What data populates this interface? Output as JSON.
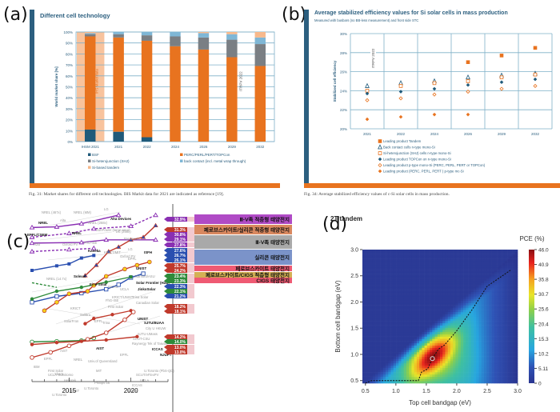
{
  "panels": {
    "a": {
      "letter": "(a)",
      "caption": "Fig. 31: Market shares for different cell technologies. IHS Markit data for 2021 are indicated as reference [19]."
    },
    "b": {
      "letter": "(b)",
      "caption": "Fig. 34: Average stabilized efficiency values of c-Si solar cells in mass production."
    },
    "c": {
      "letter": "(c)"
    },
    "d": {
      "letter": "(d)"
    }
  },
  "chart_data": [
    {
      "id": "a",
      "type": "bar",
      "stacked": true,
      "title": "Different cell technology",
      "xlabel": "",
      "ylabel": "World market share [%]",
      "ylim": [
        0,
        100
      ],
      "yticks": [
        "0%",
        "10%",
        "20%",
        "30%",
        "40%",
        "50%",
        "60%",
        "70%",
        "80%",
        "90%",
        "100%"
      ],
      "categories": [
        "IHSM 2021",
        "2021",
        "2022",
        "2024",
        "2026",
        "2029",
        "2032"
      ],
      "annotations": [
        "IHS Markit data",
        "ITRPV 2022"
      ],
      "series": [
        {
          "name": "BSF",
          "color": "#1f5a7a",
          "values": [
            11,
            9,
            4,
            0,
            0,
            0,
            0
          ]
        },
        {
          "name": "PERC/PERL/PERT/TOPCon",
          "color": "#e8731f",
          "values": [
            85,
            86,
            88,
            87,
            84,
            77,
            69
          ]
        },
        {
          "name": "Si-heterojunction (SHJ)",
          "color": "#7a7f84",
          "values": [
            2,
            3,
            5,
            9,
            11,
            16,
            20
          ]
        },
        {
          "name": "back contact (incl. metal wrap through)",
          "color": "#7fb7d6",
          "values": [
            1,
            2,
            3,
            4,
            4,
            5,
            6
          ]
        },
        {
          "name": "Si-based tandem",
          "color": "#f7b98c",
          "values": [
            1,
            0,
            0,
            0,
            1,
            2,
            5
          ]
        }
      ],
      "legend": [
        "BSF",
        "PERC/PERL/PERT/TOPCon",
        "Si-heterojunction (SHJ)",
        "back contact (incl. metal wrap through)",
        "Si-based tandem"
      ]
    },
    {
      "id": "b",
      "type": "scatter",
      "title": "Average stabilized efficiency values for Si solar cells in mass production",
      "subtitle": "Measured with busbars (no BB-less measurement) and front side STC",
      "xlabel": "",
      "ylabel": "Stabilized cell efficiency",
      "ylim": [
        20,
        30
      ],
      "yticks": [
        "20%",
        "22%",
        "24%",
        "26%",
        "28%",
        "30%"
      ],
      "categories": [
        "2021",
        "2022",
        "2024",
        "2026",
        "2029",
        "2032"
      ],
      "annotations": [
        "ITRPV 2022"
      ],
      "series": [
        {
          "name": "Leading product Tandem",
          "marker": "square-filled",
          "color": "#e8731f",
          "values": [
            null,
            null,
            null,
            27.0,
            27.7,
            28.5
          ]
        },
        {
          "name": "Back contact cells n-type mono-Si",
          "marker": "triangle-open",
          "color": "#1f5a7a",
          "values": [
            24.5,
            24.8,
            25.0,
            25.4,
            25.6,
            25.8
          ]
        },
        {
          "name": "Si-heterojunction (SHJ) cells n-type mono-Si",
          "marker": "square-open",
          "color": "#e8731f",
          "values": [
            24.0,
            24.5,
            24.8,
            25.0,
            25.4,
            25.7
          ]
        },
        {
          "name": "Leading product TOPCon on n-type mono-Si",
          "marker": "diamond-filled",
          "color": "#1f5a7a",
          "values": [
            23.7,
            23.9,
            24.2,
            24.6,
            24.9,
            25.2
          ]
        },
        {
          "name": "Leading product p-type mono-Si (PERC, PERL, PERT or TOPCon)",
          "marker": "diamond-open",
          "color": "#e8731f",
          "values": [
            23.0,
            23.2,
            23.6,
            23.9,
            24.2,
            24.5
          ]
        },
        {
          "name": "Leading product (PERC, PERL, PERT ) p-type mc-Si",
          "marker": "diamond-filled",
          "color": "#e8731f",
          "values": [
            21.0,
            21.25,
            21.5,
            21.5,
            null,
            null
          ]
        }
      ]
    },
    {
      "id": "c",
      "type": "line",
      "title": "",
      "xlabel": "",
      "ylabel": "",
      "xticks": [
        "2015",
        "2020"
      ],
      "xlim": [
        2012,
        2023
      ],
      "ylim": [
        10,
        34
      ],
      "record_labels": [
        {
          "value": "32.9%",
          "color": "#8a2fb3"
        },
        {
          "value": "31.3%",
          "color": "#c0392b"
        },
        {
          "value": "30.8%",
          "color": "#8a2fb3"
        },
        {
          "value": "29.1%",
          "color": "#8a2fb3"
        },
        {
          "value": "27.8%",
          "color": "#8a2fb3"
        },
        {
          "value": "27.6%",
          "color": "#2a4fb0"
        },
        {
          "value": "26.7%",
          "color": "#2a4fb0"
        },
        {
          "value": "26.1%",
          "color": "#2a4fb0"
        },
        {
          "value": "25.7%",
          "color": "#c0392b"
        },
        {
          "value": "24.2%",
          "color": "#c0392b"
        },
        {
          "value": "23.4%",
          "color": "#2e8b3a"
        },
        {
          "value": "23.3%",
          "color": "#2e8b3a"
        },
        {
          "value": "22.3%",
          "color": "#2a4fb0"
        },
        {
          "value": "22.1%",
          "color": "#2e8b3a"
        },
        {
          "value": "21.2%",
          "color": "#2a4fb0"
        },
        {
          "value": "18.2%",
          "color": "#c0392b"
        },
        {
          "value": "18.1%",
          "color": "#c0392b"
        },
        {
          "value": "14.2%",
          "color": "#c0392b"
        },
        {
          "value": "14.0%",
          "color": "#2e8b3a"
        },
        {
          "value": "13.0%",
          "color": "#c0392b"
        },
        {
          "value": "13.0%",
          "color": "#c0392b"
        }
      ],
      "category_bands": [
        {
          "label": "Ⅲ-Ⅴ족 적층형 태양전지",
          "color": "#b04bc6"
        },
        {
          "label": "페로브스카이트/실리콘 적층형 태양전지",
          "color": "#d9885f"
        },
        {
          "label": "Ⅲ-Ⅴ족 태양전지",
          "color": "#a9a9a9"
        },
        {
          "label": "실리콘 태양전지",
          "color": "#7b93c9"
        },
        {
          "label": "페로브스카이트 태양전지",
          "color": "#ef5a73"
        },
        {
          "label": "페로브스카이트/CIGS 적층형 태양전지",
          "color": "#d4b054"
        },
        {
          "label": "CIGS 태양전지",
          "color": "#ef5a73"
        }
      ],
      "point_labels": [
        "NREL (467x)",
        "NREL (MM)",
        "LG",
        "NREL",
        "Alta",
        "NREL (258x)",
        "Alta Devices",
        "EPFL/CSEM",
        "NREL",
        "SunPower (large-area)",
        "LG (258x)",
        "H2B",
        "Oxford PV",
        "FhG-ISE",
        "Panasonic",
        "LG",
        "Kaneka",
        "KRICT/MIT",
        "Oxford PV",
        "ISFH",
        "EPFL",
        "UNIST",
        "NREL (14.7x)",
        "Solexel",
        "First Solar",
        "Stanford/ASU",
        "Solar Frontier (H2B)",
        "JinkoSolar",
        "Trina Solar",
        "Canadian Solar",
        "ISCAS",
        "UCLA",
        "KRICT/UNIST",
        "FhG-ISE",
        "First Solar",
        "KRICT",
        "Solibro",
        "SolarFron",
        "EPFL",
        "Trina",
        "UNIST",
        "SJTU/BUAA",
        "City U HKUW",
        "SJTU-UMass",
        "SCUT-CSU",
        "Raynergy Tek of Taiwan",
        "ICCAS",
        "NJUPT",
        "EPFL",
        "AIST",
        "NREL",
        "Univ.of Queensland",
        "AIST",
        "First Solar",
        "EPFL",
        "Sharp",
        "IBM",
        "UCLA-Sumitomo",
        "Heliatek",
        "MIT",
        "Phillips 66",
        "U.Toronto",
        "HKUST",
        "U.Toronto",
        "U.Toronto (PbS-QD)",
        "SCUT/eFlexPV",
        "UCLA",
        "ICCAS",
        "UCLA"
      ]
    },
    {
      "id": "d",
      "type": "heatmap",
      "title": "2T tandem",
      "xlabel": "Top cell bandgap (eV)",
      "ylabel": "Bottom cell bandgap (eV)",
      "xlim": [
        0.5,
        3.0
      ],
      "ylim": [
        0.5,
        3.0
      ],
      "xticks": [
        "0.5",
        "1.0",
        "1.5",
        "2.0",
        "2.5",
        "3.0"
      ],
      "yticks": [
        "0.5",
        "1.0",
        "1.5",
        "2.0",
        "2.5",
        "3.0"
      ],
      "colorbar": {
        "label": "PCE (%)",
        "ticks": [
          "46.0",
          "40.9",
          "35.8",
          "30.7",
          "25.6",
          "20.4",
          "15.3",
          "10.2",
          "5.11",
          "0"
        ],
        "range": [
          0,
          46.0
        ]
      },
      "optimum": {
        "top_eV": 1.6,
        "bottom_eV": 0.92
      },
      "current_matching_line": [
        [
          0.5,
          0.45
        ],
        [
          0.6,
          0.5
        ],
        [
          1.37,
          0.5
        ],
        [
          1.42,
          0.66
        ],
        [
          1.52,
          0.72
        ],
        [
          1.6,
          0.92
        ],
        [
          1.7,
          1.1
        ],
        [
          1.8,
          1.18
        ],
        [
          2.0,
          1.45
        ],
        [
          2.25,
          1.85
        ],
        [
          2.5,
          2.3
        ],
        [
          2.9,
          2.62
        ]
      ]
    }
  ]
}
